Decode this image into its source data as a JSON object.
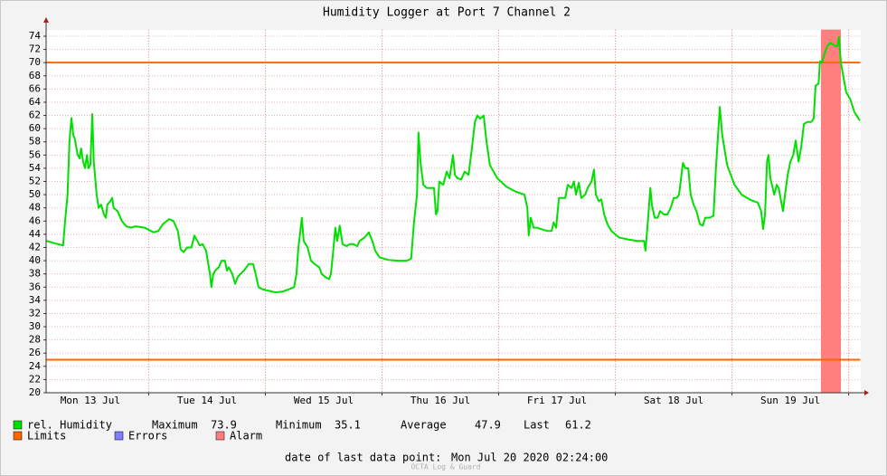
{
  "chart_data": {
    "type": "line",
    "title": "Humidity Logger at Port 7 Channel 2",
    "x": [
      2.9,
      6.4,
      6.8,
      7.3,
      7.7,
      8.1,
      8.5,
      8.8,
      9.4,
      9.8,
      10.1,
      10.5,
      10.9,
      11.3,
      11.6,
      12.0,
      12.4,
      12.7,
      13.3,
      13.7,
      14.2,
      14.8,
      15.2,
      15.5,
      16.1,
      16.5,
      16.8,
      17.6,
      18.5,
      19.4,
      20.4,
      21.3,
      23.2,
      25.0,
      26.0,
      26.9,
      28.2,
      29.1,
      30.0,
      30.6,
      31.2,
      31.9,
      32.8,
      33.4,
      34.0,
      34.5,
      35.1,
      35.8,
      36.6,
      36.9,
      37.3,
      37.7,
      38.4,
      39.0,
      39.7,
      40.1,
      40.5,
      41.2,
      41.8,
      42.3,
      42.9,
      43.6,
      44.6,
      45.5,
      46.0,
      46.6,
      47.3,
      48.3,
      50.1,
      51.4,
      52.6,
      53.9,
      54.4,
      54.8,
      55.2,
      55.5,
      55.9,
      56.7,
      57.4,
      58.1,
      59.1,
      59.6,
      60.4,
      61.1,
      61.5,
      61.9,
      62.4,
      62.8,
      63.3,
      63.9,
      64.7,
      65.4,
      66.1,
      66.9,
      67.4,
      68.4,
      69.3,
      70.0,
      70.6,
      71.5,
      73.4,
      75.3,
      77.1,
      78.0,
      78.6,
      79.2,
      79.5,
      79.9,
      80.5,
      81.2,
      82.0,
      82.7,
      83.1,
      83.4,
      83.8,
      84.6,
      85.3,
      85.9,
      86.6,
      87.0,
      87.5,
      88.3,
      89.0,
      89.8,
      90.5,
      91.1,
      91.6,
      92.2,
      92.9,
      93.5,
      94.2,
      95.7,
      97.6,
      99.4,
      101.3,
      101.9,
      102.2,
      102.6,
      103.2,
      103.9,
      104.7,
      106.0,
      106.9,
      107.3,
      107.8,
      108.4,
      108.9,
      109.7,
      110.2,
      111.0,
      111.5,
      111.9,
      112.5,
      113.0,
      113.8,
      114.3,
      115.1,
      115.6,
      116.0,
      116.6,
      117.1,
      117.7,
      118.4,
      119.2,
      120.8,
      122.7,
      124.6,
      125.9,
      126.2,
      126.8,
      127.2,
      127.5,
      128.1,
      128.7,
      129.2,
      130.0,
      130.7,
      131.4,
      132.0,
      132.6,
      133.1,
      133.9,
      134.4,
      135.0,
      135.5,
      136.1,
      136.7,
      137.4,
      138.0,
      138.5,
      139.4,
      140.2,
      140.7,
      141.5,
      142.0,
      143.0,
      144.5,
      146.0,
      147.8,
      149.3,
      150.0,
      150.4,
      150.8,
      151.2,
      151.5,
      151.9,
      152.7,
      153.2,
      153.6,
      154.1,
      154.5,
      154.9,
      155.4,
      156.0,
      156.6,
      157.1,
      157.7,
      158.2,
      158.8,
      159.5,
      160.3,
      160.8,
      161.2,
      161.8,
      162.1,
      162.5,
      163.1,
      163.6,
      164.2,
      164.7,
      165.3,
      165.7,
      166.0,
      166.4,
      167.0,
      167.5,
      168.3,
      169.2,
      170.3
    ],
    "series": [
      {
        "name": "rel. Humidity",
        "color": "#00e000",
        "values": [
          43.0,
          42.3,
          46,
          50,
          58,
          61.6,
          59,
          58.5,
          56,
          55.5,
          57,
          55,
          54,
          56,
          54,
          54.5,
          62.2,
          55,
          50,
          48,
          48.5,
          47,
          46.5,
          48.5,
          49,
          49.5,
          48,
          47.5,
          46,
          45.2,
          45,
          45.2,
          45,
          44.3,
          44.5,
          45.5,
          46.3,
          46,
          44.5,
          41.7,
          41.3,
          42,
          42,
          43.8,
          43,
          42.3,
          42.5,
          41.5,
          38,
          36,
          38,
          38.5,
          39,
          40,
          40,
          38.5,
          39,
          38,
          36.5,
          37.5,
          38,
          38.5,
          39.5,
          39.5,
          38,
          36,
          35.7,
          35.5,
          35.2,
          35.3,
          35.6,
          36,
          38,
          42,
          44.5,
          46.5,
          43,
          42,
          40,
          39.5,
          39,
          38,
          37.5,
          37.2,
          38,
          41,
          45,
          43,
          45.3,
          42.5,
          42.2,
          42.5,
          42.5,
          42.2,
          43,
          43.5,
          44.3,
          43,
          41.5,
          40.5,
          40.1,
          40,
          40,
          40.3,
          46,
          50,
          59.4,
          55,
          51.5,
          51,
          51,
          51,
          47,
          47.5,
          52,
          51.5,
          53.5,
          52.5,
          56,
          53,
          52.5,
          52.3,
          53.5,
          53,
          57,
          61,
          62,
          61.5,
          62,
          58,
          54.5,
          52.5,
          51.2,
          50.5,
          50,
          48,
          43.8,
          46.5,
          45,
          45,
          44.8,
          44.5,
          44.5,
          45.8,
          45,
          49.5,
          49.5,
          49.5,
          51.5,
          51,
          52,
          50,
          51.8,
          49.5,
          50,
          51,
          52,
          53.8,
          50,
          49,
          49.3,
          47,
          45.5,
          44.5,
          43.5,
          43.2,
          43,
          43,
          41.5,
          47,
          51,
          48.5,
          46.5,
          46.5,
          47.5,
          47,
          47,
          48,
          49.5,
          49.5,
          50,
          54.8,
          54,
          54,
          50,
          48.5,
          47.5,
          45.5,
          45.3,
          46.5,
          46.5,
          46.8,
          54,
          63.3,
          59,
          54.5,
          51.5,
          50,
          49.2,
          48.8,
          47.5,
          44.8,
          47,
          55,
          56,
          52.5,
          50,
          51.5,
          51,
          49,
          47.5,
          50,
          52.8,
          55,
          56,
          58.2,
          55,
          57,
          60.7,
          61,
          61,
          61.5,
          66.5,
          66.8,
          70.2,
          70,
          71.5,
          72.5,
          73,
          72.8,
          72.5,
          72.5,
          73.9,
          70,
          67.5,
          65.5,
          64.5,
          62.5,
          61.2
        ]
      }
    ],
    "xlim": [
      2.9,
      170.4
    ],
    "xticks": [
      {
        "value": 12,
        "label": "Mon 13 Jul"
      },
      {
        "value": 36,
        "label": "Tue 14 Jul"
      },
      {
        "value": 60,
        "label": "Wed 15 Jul"
      },
      {
        "value": 84,
        "label": "Thu 16 Jul"
      },
      {
        "value": 108,
        "label": "Fri 17 Jul"
      },
      {
        "value": 132,
        "label": "Sat 18 Jul"
      },
      {
        "value": 156,
        "label": "Sun 19 Jul"
      }
    ],
    "ylim": [
      20,
      75
    ],
    "yticks": [
      20,
      22,
      24,
      26,
      28,
      30,
      32,
      34,
      36,
      38,
      40,
      42,
      44,
      46,
      48,
      50,
      52,
      54,
      56,
      58,
      60,
      62,
      64,
      66,
      68,
      70,
      72,
      74
    ],
    "grid": true,
    "limits": {
      "name": "Limits",
      "color": "#ff6600",
      "values": [
        70,
        25
      ]
    },
    "errors": {
      "name": "Errors",
      "color": "#7f7fff"
    },
    "alarm": {
      "name": "Alarm",
      "color": "#ff7f7f",
      "ranges": [
        [
          162.3,
          166.4
        ]
      ]
    },
    "stats": [
      {
        "label": "Maximum",
        "value": 73.9
      },
      {
        "label": "Minimum",
        "value": 35.1
      },
      {
        "label": "Average",
        "value": 47.9
      },
      {
        "label": "Last",
        "value": 61.2
      }
    ],
    "footer": {
      "label": "date of last data point:",
      "value": "Mon Jul 20 2020 02:24:00"
    },
    "watermark": "OCTA Log & Guard"
  }
}
